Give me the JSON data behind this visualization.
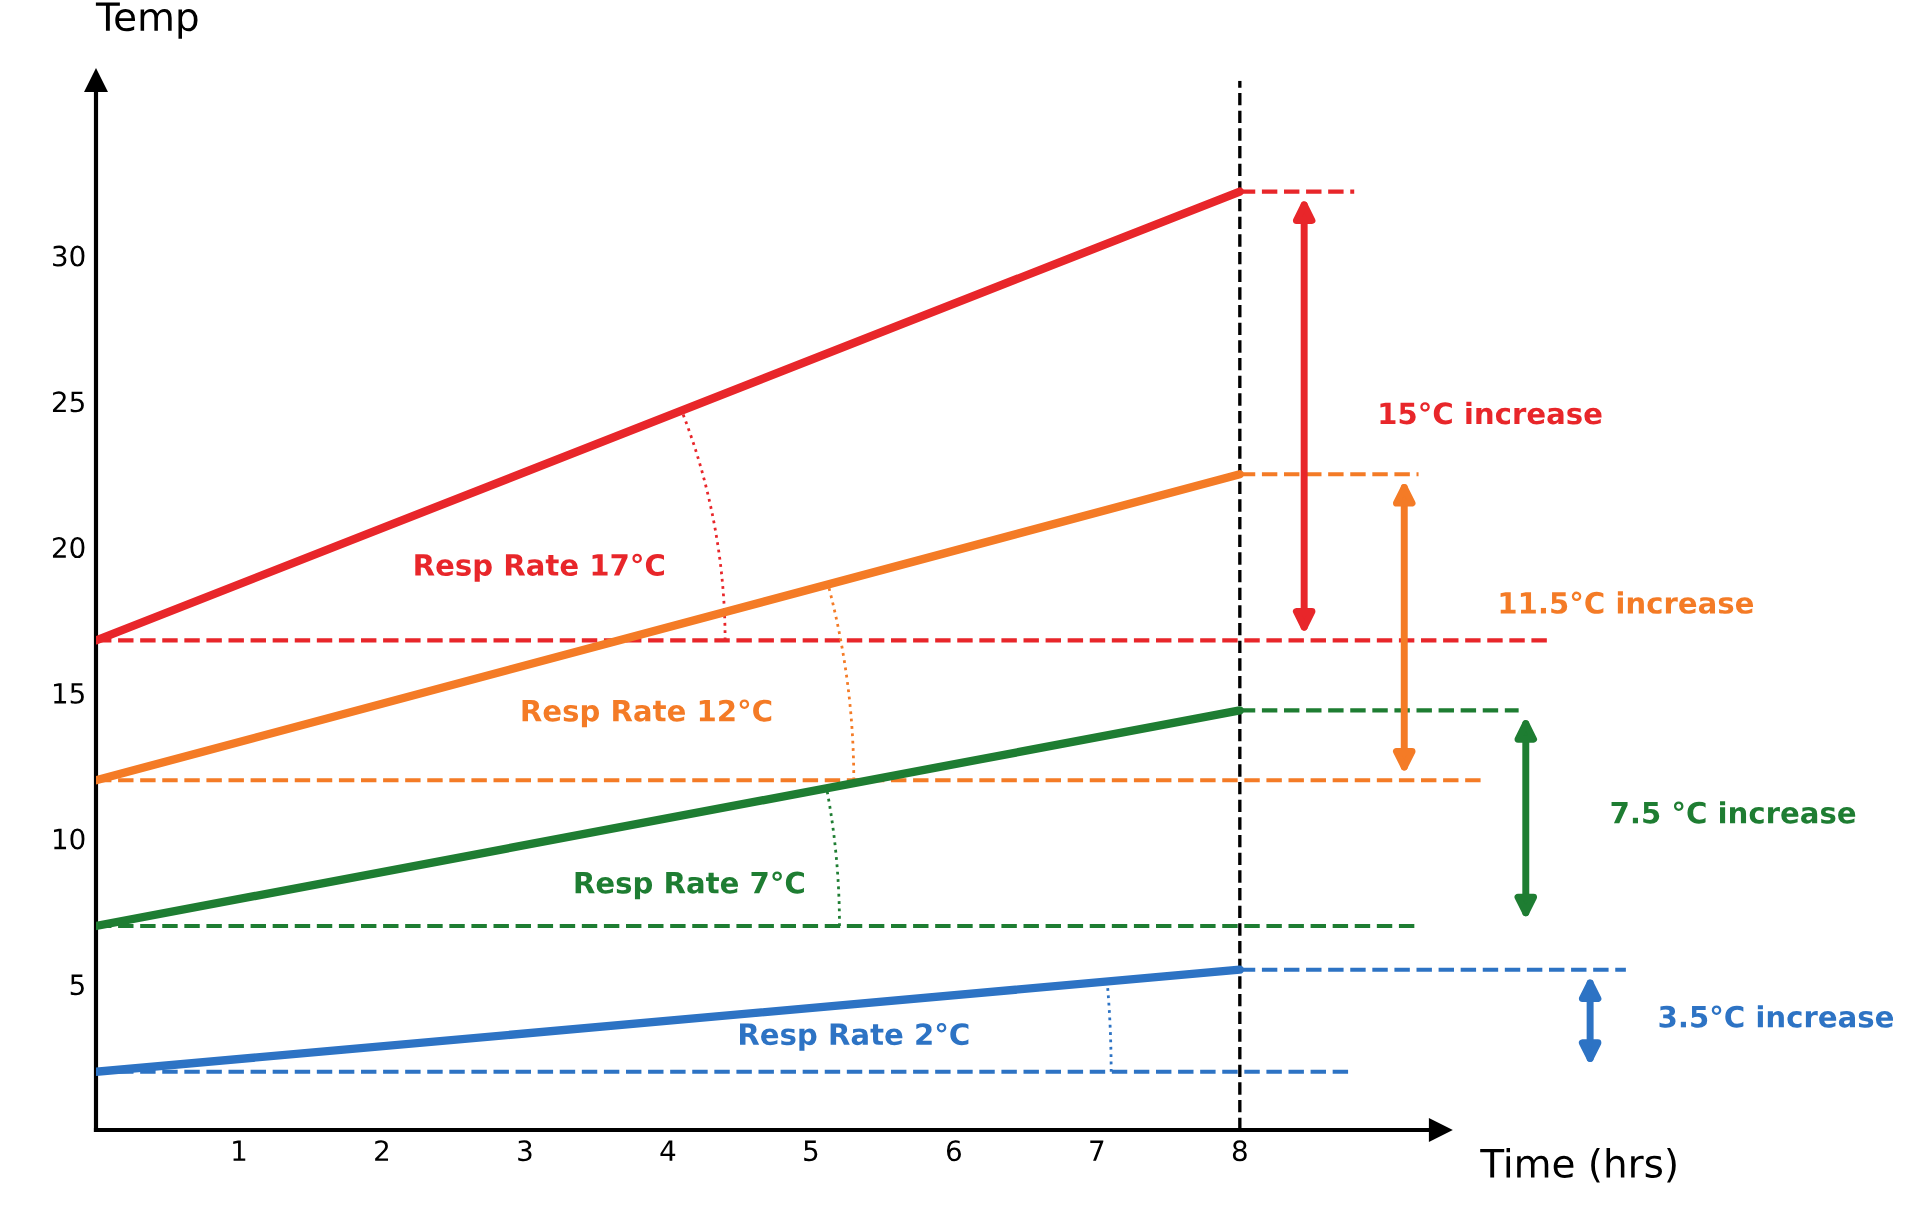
{
  "chart_data": {
    "type": "line",
    "xlabel": "Time (hrs)",
    "ylabel": "Temp",
    "x": [
      0,
      8
    ],
    "series": [
      {
        "color": "#e8262a",
        "values": [
          16.8,
          32.2
        ]
      },
      {
        "color": "#f47b26",
        "values": [
          12.0,
          22.5
        ]
      },
      {
        "color": "#1e7d32",
        "values": [
          7.0,
          14.4
        ]
      },
      {
        "color": "#2d73c4",
        "values": [
          2.0,
          5.5
        ]
      }
    ],
    "xlim": [
      0,
      9.4
    ],
    "ylim": [
      0,
      36
    ],
    "xticks": [
      1,
      2,
      3,
      4,
      5,
      6,
      7,
      8
    ],
    "yticks": [
      5,
      10,
      15,
      20,
      25,
      30
    ],
    "grid": false,
    "legend": false,
    "marker": "none",
    "line_style": "solid",
    "ref_lines": [
      {
        "axis": "y",
        "value": 16.8,
        "color": "#e8262a",
        "line_style": "dashed"
      },
      {
        "axis": "y",
        "value": 12.0,
        "color": "#f47b26",
        "line_style": "dashed"
      },
      {
        "axis": "y",
        "value": 7.0,
        "color": "#1e7d32",
        "line_style": "dashed"
      },
      {
        "axis": "y",
        "value": 2.0,
        "color": "#2d73c4",
        "line_style": "dashed"
      },
      {
        "axis": "y",
        "value": 32.2,
        "color": "#e8262a",
        "line_style": "dashed"
      },
      {
        "axis": "y",
        "value": 22.5,
        "color": "#f47b26",
        "line_style": "dashed"
      },
      {
        "axis": "y",
        "value": 14.4,
        "color": "#1e7d32",
        "line_style": "dashed"
      },
      {
        "axis": "y",
        "value": 5.5,
        "color": "#2d73c4",
        "line_style": "dashed"
      },
      {
        "axis": "x",
        "value": 8,
        "color": "#000000",
        "line_style": "dashed"
      }
    ],
    "annotations": [
      "Resp Rate 17°C",
      "Resp Rate 12°C",
      "Resp Rate 7°C",
      "Resp Rate 2°C",
      "15°C increase",
      "11.5°C increase",
      "7.5 °C increase",
      "3.5°C increase"
    ]
  }
}
